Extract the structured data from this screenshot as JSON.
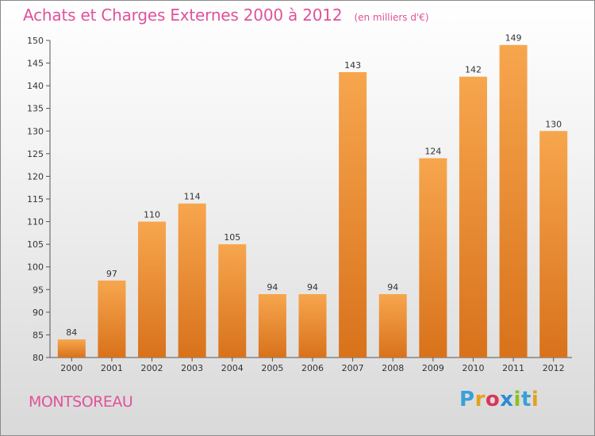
{
  "title": "Achats et Charges Externes 2000 à 2012",
  "unit": "(en milliers d'€)",
  "commune": "MONTSOREAU",
  "logo": {
    "letters": [
      "P",
      "r",
      "o",
      "x",
      "i",
      "t",
      "i"
    ]
  },
  "colors": {
    "title": "#e0529a",
    "bar_top": "#f7a64e",
    "bar_bottom": "#d8721b"
  },
  "chart_data": {
    "type": "bar",
    "title": "Achats et Charges Externes 2000 à 2012",
    "subtitle": "(en milliers d'€)",
    "categories": [
      "2000",
      "2001",
      "2002",
      "2003",
      "2004",
      "2005",
      "2006",
      "2007",
      "2008",
      "2009",
      "2010",
      "2011",
      "2012"
    ],
    "values": [
      84,
      97,
      110,
      114,
      105,
      94,
      94,
      143,
      94,
      124,
      142,
      149,
      130
    ],
    "ylim": [
      80,
      150
    ],
    "yticks": [
      80,
      85,
      90,
      95,
      100,
      105,
      110,
      115,
      120,
      125,
      130,
      135,
      140,
      145,
      150
    ],
    "grid": false,
    "legend": "none"
  }
}
